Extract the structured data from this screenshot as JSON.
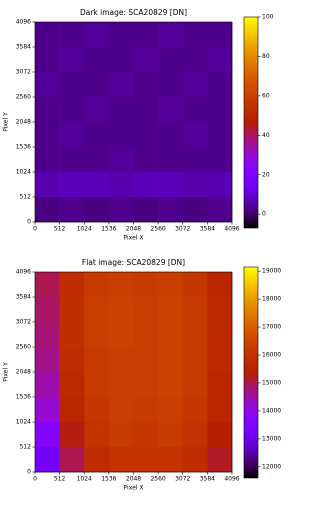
{
  "chart_data": [
    {
      "type": "heatmap",
      "title": "Dark image: SCA20829 [DN]",
      "xlabel": "Pixel X",
      "ylabel": "Pixel Y",
      "xlim": [
        0,
        4096
      ],
      "ylim": [
        0,
        4096
      ],
      "xticks": [
        0,
        512,
        1024,
        1536,
        2048,
        2560,
        3072,
        3584,
        4096
      ],
      "yticks": [
        0,
        512,
        1024,
        1536,
        2048,
        2560,
        3072,
        3584,
        4096
      ],
      "colormap": "gnuplot",
      "clim": [
        -7,
        100
      ],
      "cticks": [
        0,
        20,
        40,
        60,
        80,
        100
      ],
      "z": [
        [
          3,
          3,
          4,
          3,
          3,
          4,
          3,
          3
        ],
        [
          3,
          4,
          3,
          3,
          4,
          3,
          3,
          4
        ],
        [
          4,
          3,
          3,
          4,
          3,
          3,
          4,
          3
        ],
        [
          3,
          3,
          4,
          3,
          3,
          4,
          3,
          3
        ],
        [
          3,
          4,
          3,
          3,
          3,
          3,
          4,
          3
        ],
        [
          3,
          3,
          3,
          4,
          3,
          3,
          3,
          3
        ],
        [
          6,
          7,
          7,
          6,
          7,
          7,
          6,
          6
        ],
        [
          2,
          3,
          2,
          3,
          2,
          3,
          2,
          3
        ]
      ]
    },
    {
      "type": "heatmap",
      "title": "Flat image: SCA20829 [DN]",
      "xlabel": "Pixel X",
      "ylabel": "Pixel Y",
      "xlim": [
        0,
        4096
      ],
      "ylim": [
        0,
        4096
      ],
      "xticks": [
        0,
        512,
        1024,
        1536,
        2048,
        2560,
        3072,
        3584,
        4096
      ],
      "yticks": [
        0,
        512,
        1024,
        1536,
        2048,
        2560,
        3072,
        3584,
        4096
      ],
      "colormap": "gnuplot",
      "clim": [
        11600,
        19150
      ],
      "cticks": [
        12000,
        13000,
        14000,
        15000,
        16000,
        17000,
        18000,
        19000
      ],
      "z": [
        [
          15000,
          15800,
          16200,
          16300,
          16200,
          16300,
          16100,
          15600
        ],
        [
          14900,
          15900,
          16300,
          16400,
          16300,
          16400,
          16200,
          15700
        ],
        [
          14800,
          15900,
          16300,
          16400,
          16300,
          16400,
          16200,
          15700
        ],
        [
          14700,
          15800,
          16200,
          16300,
          16300,
          16400,
          16200,
          15700
        ],
        [
          14500,
          15700,
          16200,
          16300,
          16300,
          16400,
          16200,
          15600
        ],
        [
          14200,
          15600,
          16100,
          16300,
          16200,
          16300,
          16100,
          15600
        ],
        [
          13600,
          15300,
          16000,
          16200,
          16100,
          16200,
          16000,
          15400
        ],
        [
          13200,
          15000,
          15800,
          16000,
          16000,
          16000,
          15800,
          15200
        ]
      ]
    }
  ]
}
